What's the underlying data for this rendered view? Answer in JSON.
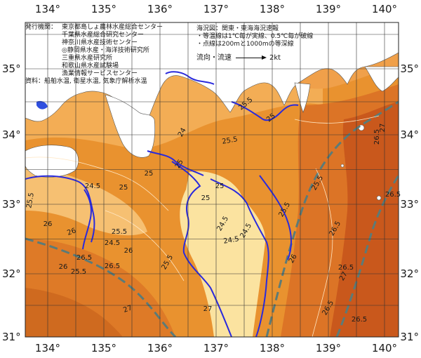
{
  "lon_labels": [
    "134°",
    "135°",
    "136°",
    "137°",
    "138°",
    "139°",
    "140°"
  ],
  "lat_labels": [
    "35°",
    "34°",
    "33°",
    "32°",
    "31°"
  ],
  "publisher": {
    "label": "発行機関：",
    "orgs": [
      "東京都島しょ農林水産総合センター",
      "千葉県水産総合研究センター",
      "神奈川県水産技術センター",
      "◎静岡県水産・海洋技術研究所",
      "三重県水産研究所",
      "和歌山県水産試験場",
      "漁業情報サービスセンター"
    ],
    "source_label": "資料：",
    "source": "船舶水温, 衛星水温, 気象庁解析水温"
  },
  "legend": {
    "title": "海況図：関東・東海海況速報",
    "line1": "・等温線は1℃毎が実線、0.5℃毎が破線",
    "line2": "・点線は200mと1000mの等深線",
    "flow_label": "流向・流速",
    "flow_value": "2kt"
  },
  "contour_labels": [
    "25.5",
    "25",
    "24",
    "25",
    "25.5",
    "25",
    "24.5",
    "24.5",
    "25.5",
    "25",
    "24.5",
    "25",
    "25.5",
    "26",
    "26",
    "25.5",
    "24.5",
    "25.5",
    "26",
    "26.5",
    "26",
    "25.5",
    "26.5",
    "27",
    "27",
    "26.5",
    "26.5",
    "25.5",
    "26",
    "26.5",
    "27",
    "26.5",
    "25",
    "24.5",
    "26.5",
    "27",
    "26.5"
  ],
  "colors": {
    "land": "#ffffff",
    "sea_cool": "#fce8a8",
    "sea_mid": "#f5b35f",
    "sea_warm": "#e88a30",
    "sea_hot": "#c85a1e",
    "isotherm": "#2a2adc",
    "kuroshio": "#5a7a7a",
    "grid": "#333333"
  }
}
